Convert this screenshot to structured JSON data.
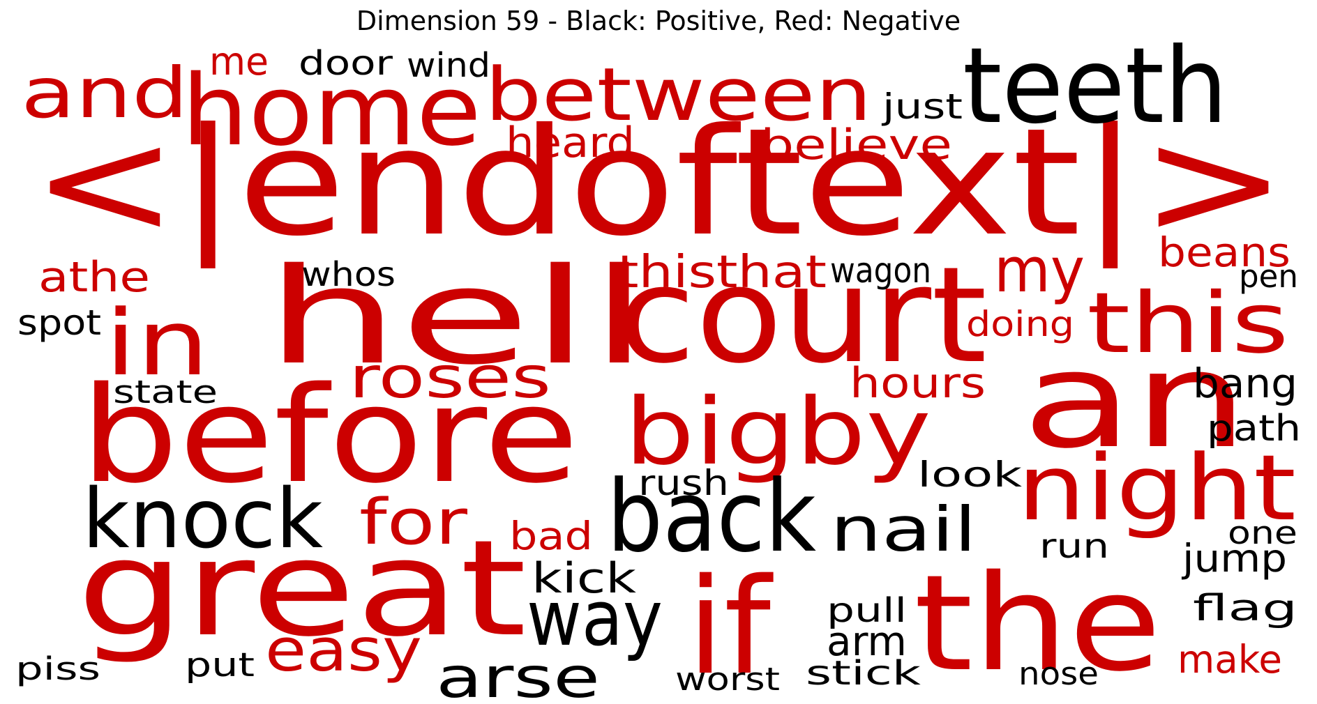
{
  "title": "Dimension 59 - Black: Positive, Red: Negative",
  "colors": {
    "positive": "#000000",
    "negative": "#cc0000"
  },
  "words": [
    {
      "text": "<|endoftext|>",
      "sign": "negative"
    },
    {
      "text": "home",
      "sign": "negative"
    },
    {
      "text": "between",
      "sign": "negative"
    },
    {
      "text": "and",
      "sign": "negative"
    },
    {
      "text": "me",
      "sign": "negative"
    },
    {
      "text": "door",
      "sign": "positive"
    },
    {
      "text": "wind",
      "sign": "positive"
    },
    {
      "text": "teeth",
      "sign": "positive"
    },
    {
      "text": "just",
      "sign": "positive"
    },
    {
      "text": "heard",
      "sign": "negative"
    },
    {
      "text": "believe",
      "sign": "negative"
    },
    {
      "text": "hell",
      "sign": "negative"
    },
    {
      "text": "court",
      "sign": "negative"
    },
    {
      "text": "athe",
      "sign": "negative"
    },
    {
      "text": "whos",
      "sign": "positive"
    },
    {
      "text": "thisthat",
      "sign": "negative"
    },
    {
      "text": "wagon",
      "sign": "positive"
    },
    {
      "text": "my",
      "sign": "negative"
    },
    {
      "text": "beans",
      "sign": "negative"
    },
    {
      "text": "pen",
      "sign": "positive"
    },
    {
      "text": "spot",
      "sign": "positive"
    },
    {
      "text": "in",
      "sign": "negative"
    },
    {
      "text": "doing",
      "sign": "negative"
    },
    {
      "text": "this",
      "sign": "negative"
    },
    {
      "text": "roses",
      "sign": "negative"
    },
    {
      "text": "hours",
      "sign": "negative"
    },
    {
      "text": "an",
      "sign": "negative"
    },
    {
      "text": "state",
      "sign": "positive"
    },
    {
      "text": "before",
      "sign": "negative"
    },
    {
      "text": "bigby",
      "sign": "negative"
    },
    {
      "text": "bang",
      "sign": "positive"
    },
    {
      "text": "path",
      "sign": "positive"
    },
    {
      "text": "look",
      "sign": "positive"
    },
    {
      "text": "rush",
      "sign": "positive"
    },
    {
      "text": "night",
      "sign": "negative"
    },
    {
      "text": "knock",
      "sign": "positive"
    },
    {
      "text": "for",
      "sign": "negative"
    },
    {
      "text": "back",
      "sign": "positive"
    },
    {
      "text": "nail",
      "sign": "positive"
    },
    {
      "text": "bad",
      "sign": "negative"
    },
    {
      "text": "one",
      "sign": "positive"
    },
    {
      "text": "run",
      "sign": "positive"
    },
    {
      "text": "jump",
      "sign": "positive"
    },
    {
      "text": "great",
      "sign": "negative"
    },
    {
      "text": "kick",
      "sign": "positive"
    },
    {
      "text": "if",
      "sign": "negative"
    },
    {
      "text": "the",
      "sign": "negative"
    },
    {
      "text": "way",
      "sign": "positive"
    },
    {
      "text": "pull",
      "sign": "positive"
    },
    {
      "text": "flag",
      "sign": "positive"
    },
    {
      "text": "easy",
      "sign": "negative"
    },
    {
      "text": "arm",
      "sign": "positive"
    },
    {
      "text": "arse",
      "sign": "positive"
    },
    {
      "text": "make",
      "sign": "negative"
    },
    {
      "text": "piss",
      "sign": "positive"
    },
    {
      "text": "put",
      "sign": "positive"
    },
    {
      "text": "stick",
      "sign": "positive"
    },
    {
      "text": "worst",
      "sign": "positive"
    },
    {
      "text": "nose",
      "sign": "positive"
    }
  ]
}
